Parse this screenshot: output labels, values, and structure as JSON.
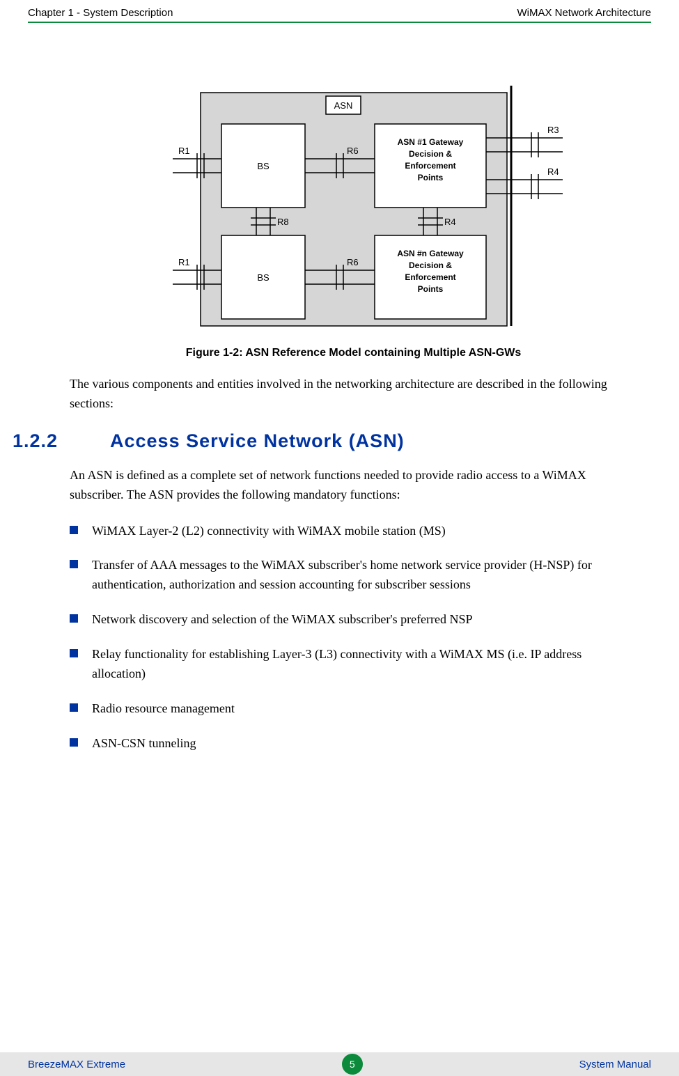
{
  "colors": {
    "green": "#0a8a3a",
    "blue": "#0033a0",
    "bullet": "#0033a0",
    "footer_bg": "#e6e6e6",
    "diagram_bg": "#d6d6d6",
    "diagram_line": "#000000",
    "diagram_box_fill": "#ffffff"
  },
  "header": {
    "left": "Chapter 1 - System Description",
    "right": "WiMAX Network Architecture"
  },
  "figure": {
    "caption": "Figure 1-2: ASN Reference Model containing Multiple ASN-GWs",
    "asn_label": "ASN",
    "bs_label": "BS",
    "gw1_lines": [
      "ASN #1 Gateway",
      "Decision &",
      "Enforcement",
      "Points"
    ],
    "gwn_lines": [
      "ASN #n Gateway",
      "Decision &",
      "Enforcement",
      "Points"
    ],
    "refs": {
      "R1": "R1",
      "R3": "R3",
      "R4": "R4",
      "R6": "R6",
      "R8": "R8"
    }
  },
  "intro": "The various components and entities involved in the networking architecture are described in the following sections:",
  "section": {
    "number": "1.2.2",
    "title": "Access Service Network (ASN)"
  },
  "section_intro": "An ASN is defined as a complete set of network functions needed to provide radio access to a WiMAX subscriber. The ASN provides the following mandatory functions:",
  "bullets": [
    "WiMAX Layer-2 (L2) connectivity with WiMAX mobile station (MS)",
    "Transfer of AAA messages to the WiMAX subscriber's home network service provider (H-NSP) for authentication, authorization and session accounting for subscriber sessions",
    "Network discovery and selection of the WiMAX subscriber's preferred NSP",
    "Relay functionality for establishing Layer-3 (L3) connectivity with a WiMAX MS (i.e. IP address allocation)",
    "Radio resource management",
    "ASN-CSN tunneling"
  ],
  "footer": {
    "left": "BreezeMAX Extreme",
    "page": "5",
    "right": "System Manual"
  }
}
